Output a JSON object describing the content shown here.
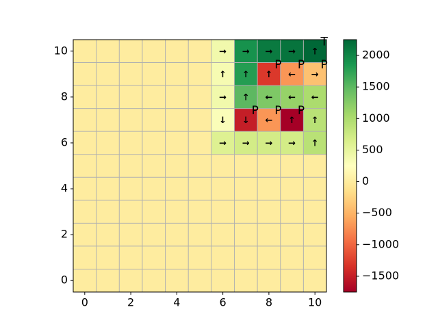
{
  "chart_data": {
    "type": "heatmap",
    "colormap": "RdYlGn",
    "grid": true,
    "xlim": [
      -0.5,
      10.5
    ],
    "ylim": [
      -0.5,
      10.5
    ],
    "xticks": [
      0,
      2,
      4,
      6,
      8,
      10
    ],
    "yticks": [
      0,
      2,
      4,
      6,
      8,
      10
    ],
    "clim": [
      -1750,
      2250
    ],
    "cticks": [
      {
        "value": -1500,
        "label": "−1500"
      },
      {
        "value": -1000,
        "label": "−1000"
      },
      {
        "value": -500,
        "label": "−500"
      },
      0,
      500,
      1000,
      1500,
      2000
    ],
    "z": [
      [
        0,
        0,
        0,
        0,
        0,
        0,
        0,
        0,
        0,
        0,
        0
      ],
      [
        0,
        0,
        0,
        0,
        0,
        0,
        0,
        0,
        0,
        0,
        0
      ],
      [
        0,
        0,
        0,
        0,
        0,
        0,
        0,
        0,
        0,
        0,
        0
      ],
      [
        0,
        0,
        0,
        0,
        0,
        0,
        0,
        0,
        0,
        0,
        0
      ],
      [
        0,
        0,
        0,
        0,
        0,
        0,
        0,
        0,
        0,
        0,
        0
      ],
      [
        0,
        0,
        0,
        0,
        0,
        0,
        0,
        0,
        0,
        0,
        0
      ],
      [
        0,
        0,
        0,
        0,
        0,
        0,
        600,
        700,
        700,
        700,
        900
      ],
      [
        0,
        0,
        0,
        0,
        0,
        0,
        300,
        -1500,
        -700,
        -1750,
        900
      ],
      [
        0,
        0,
        0,
        0,
        0,
        0,
        400,
        1500,
        1300,
        1150,
        1000
      ],
      [
        0,
        0,
        0,
        0,
        0,
        0,
        350,
        1800,
        -1300,
        -700,
        -400
      ],
      [
        0,
        0,
        0,
        0,
        0,
        0,
        400,
        1900,
        2100,
        2150,
        2250
      ]
    ],
    "arrows": [
      {
        "x": 6,
        "y": 10,
        "text": "→"
      },
      {
        "x": 7,
        "y": 10,
        "text": "→"
      },
      {
        "x": 8,
        "y": 10,
        "text": "→"
      },
      {
        "x": 9,
        "y": 10,
        "text": "→"
      },
      {
        "x": 10,
        "y": 10,
        "text": "↑"
      },
      {
        "x": 6,
        "y": 9,
        "text": "↑"
      },
      {
        "x": 7,
        "y": 9,
        "text": "↑"
      },
      {
        "x": 8,
        "y": 9,
        "text": "↑"
      },
      {
        "x": 9,
        "y": 9,
        "text": "←"
      },
      {
        "x": 10,
        "y": 9,
        "text": "→"
      },
      {
        "x": 6,
        "y": 8,
        "text": "→"
      },
      {
        "x": 7,
        "y": 8,
        "text": "↑"
      },
      {
        "x": 8,
        "y": 8,
        "text": "←"
      },
      {
        "x": 9,
        "y": 8,
        "text": "←"
      },
      {
        "x": 10,
        "y": 8,
        "text": "←"
      },
      {
        "x": 6,
        "y": 7,
        "text": "↓"
      },
      {
        "x": 7,
        "y": 7,
        "text": "↓"
      },
      {
        "x": 8,
        "y": 7,
        "text": "←"
      },
      {
        "x": 9,
        "y": 7,
        "text": "↑"
      },
      {
        "x": 10,
        "y": 7,
        "text": "↑"
      },
      {
        "x": 6,
        "y": 6,
        "text": "→"
      },
      {
        "x": 7,
        "y": 6,
        "text": "→"
      },
      {
        "x": 8,
        "y": 6,
        "text": "→"
      },
      {
        "x": 9,
        "y": 6,
        "text": "→"
      },
      {
        "x": 10,
        "y": 6,
        "text": "↑"
      }
    ],
    "annotations": [
      {
        "text": "T",
        "x": 10.4,
        "y": 10.4
      },
      {
        "text": "P",
        "x": 8.4,
        "y": 9.4
      },
      {
        "text": "P",
        "x": 9.4,
        "y": 9.4
      },
      {
        "text": "P",
        "x": 10.4,
        "y": 9.4
      },
      {
        "text": "P",
        "x": 7.4,
        "y": 7.4
      },
      {
        "text": "P",
        "x": 8.4,
        "y": 7.4
      },
      {
        "text": "P",
        "x": 9.4,
        "y": 7.4
      }
    ]
  }
}
